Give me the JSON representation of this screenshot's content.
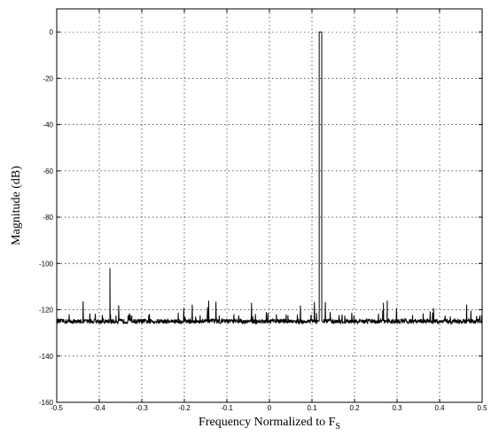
{
  "chart_data": {
    "type": "line",
    "title": "",
    "xlabel_main": "Frequency Normalized to F",
    "xlabel_sub": "S",
    "ylabel": "Magnitude (dB)",
    "xlim": [
      -0.5,
      0.5
    ],
    "ylim": [
      -160,
      10
    ],
    "x_ticks": [
      -0.5,
      -0.4,
      -0.3,
      -0.2,
      -0.1,
      0,
      0.1,
      0.2,
      0.3,
      0.4,
      0.5
    ],
    "x_tick_labels": [
      "-0.5",
      "-0.4",
      "-0.3",
      "-0.2",
      "-0.1",
      "0",
      "0.1",
      "0.2",
      "0.3",
      "0.4",
      "0.5"
    ],
    "y_ticks": [
      0,
      -20,
      -40,
      -60,
      -80,
      -100,
      -120,
      -140,
      -160
    ],
    "y_tick_labels": [
      "0",
      "-20",
      "-40",
      "-60",
      "-80",
      "-100",
      "-120",
      "-140",
      "-160"
    ],
    "grid": true,
    "noise_floor_db": -125,
    "noise_spread_db": 2,
    "series": [
      {
        "values_description_points": [
          {
            "x": -0.375,
            "y": -102
          },
          {
            "x": 0.117,
            "y": 0
          },
          {
            "x": 0.123,
            "y": 0
          },
          {
            "x": 0.268,
            "y": -117
          },
          {
            "x": 0.277,
            "y": -116
          }
        ]
      }
    ]
  }
}
